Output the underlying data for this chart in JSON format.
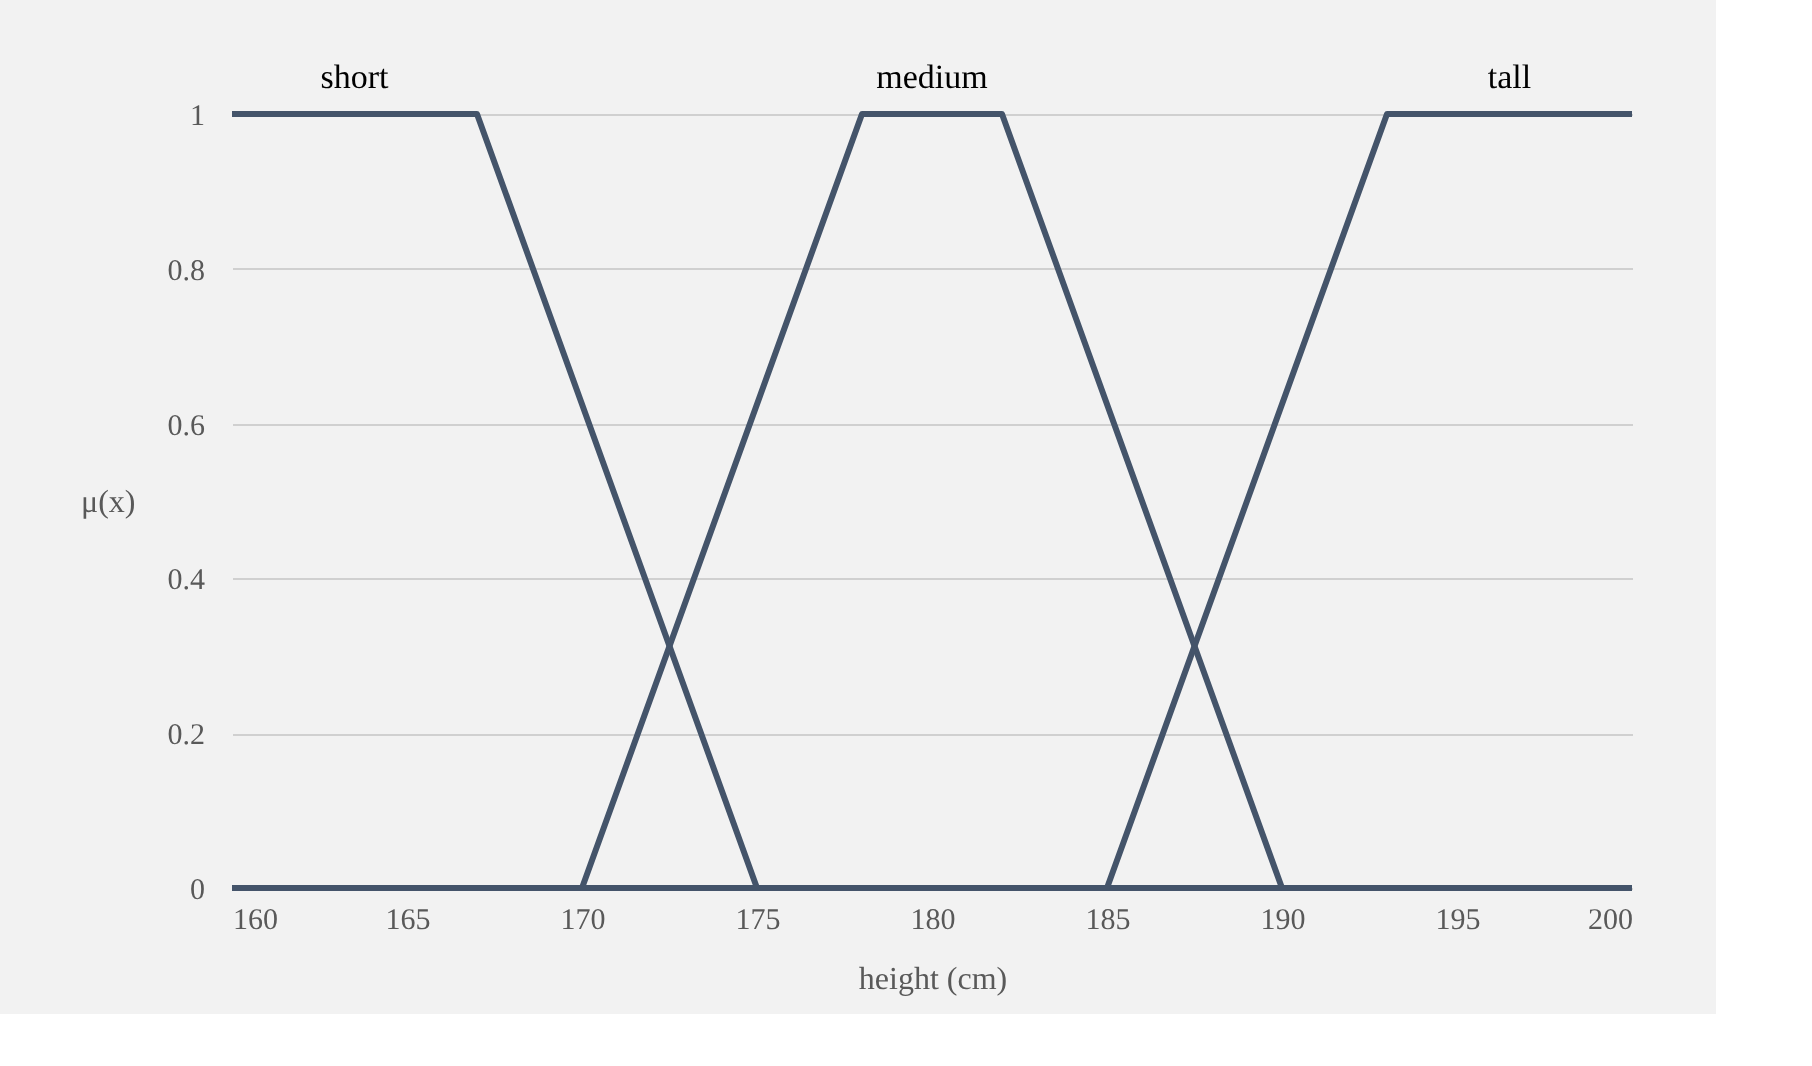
{
  "chart_data": {
    "type": "line",
    "xlabel": "height (cm)",
    "ylabel": "μ(x)",
    "xlim": [
      160,
      200
    ],
    "xticks": [
      160,
      165,
      170,
      175,
      180,
      185,
      190,
      195,
      200
    ],
    "ylim": [
      0,
      1
    ],
    "yticks": [
      0,
      0.2,
      0.4,
      0.6,
      0.8,
      1
    ],
    "grid": "y",
    "marker": "none",
    "line_style": "solid",
    "series": [
      {
        "name": "short",
        "color": "#44546a",
        "x": [
          160,
          167,
          175,
          200
        ],
        "values": [
          1,
          1,
          0,
          0
        ]
      },
      {
        "name": "medium",
        "color": "#44546a",
        "x": [
          160,
          170,
          178,
          182,
          190,
          200
        ],
        "values": [
          0,
          0,
          1,
          1,
          0,
          0
        ]
      },
      {
        "name": "tall",
        "color": "#44546a",
        "x": [
          160,
          185,
          193,
          200
        ],
        "values": [
          0,
          0,
          1,
          1
        ]
      }
    ]
  }
}
